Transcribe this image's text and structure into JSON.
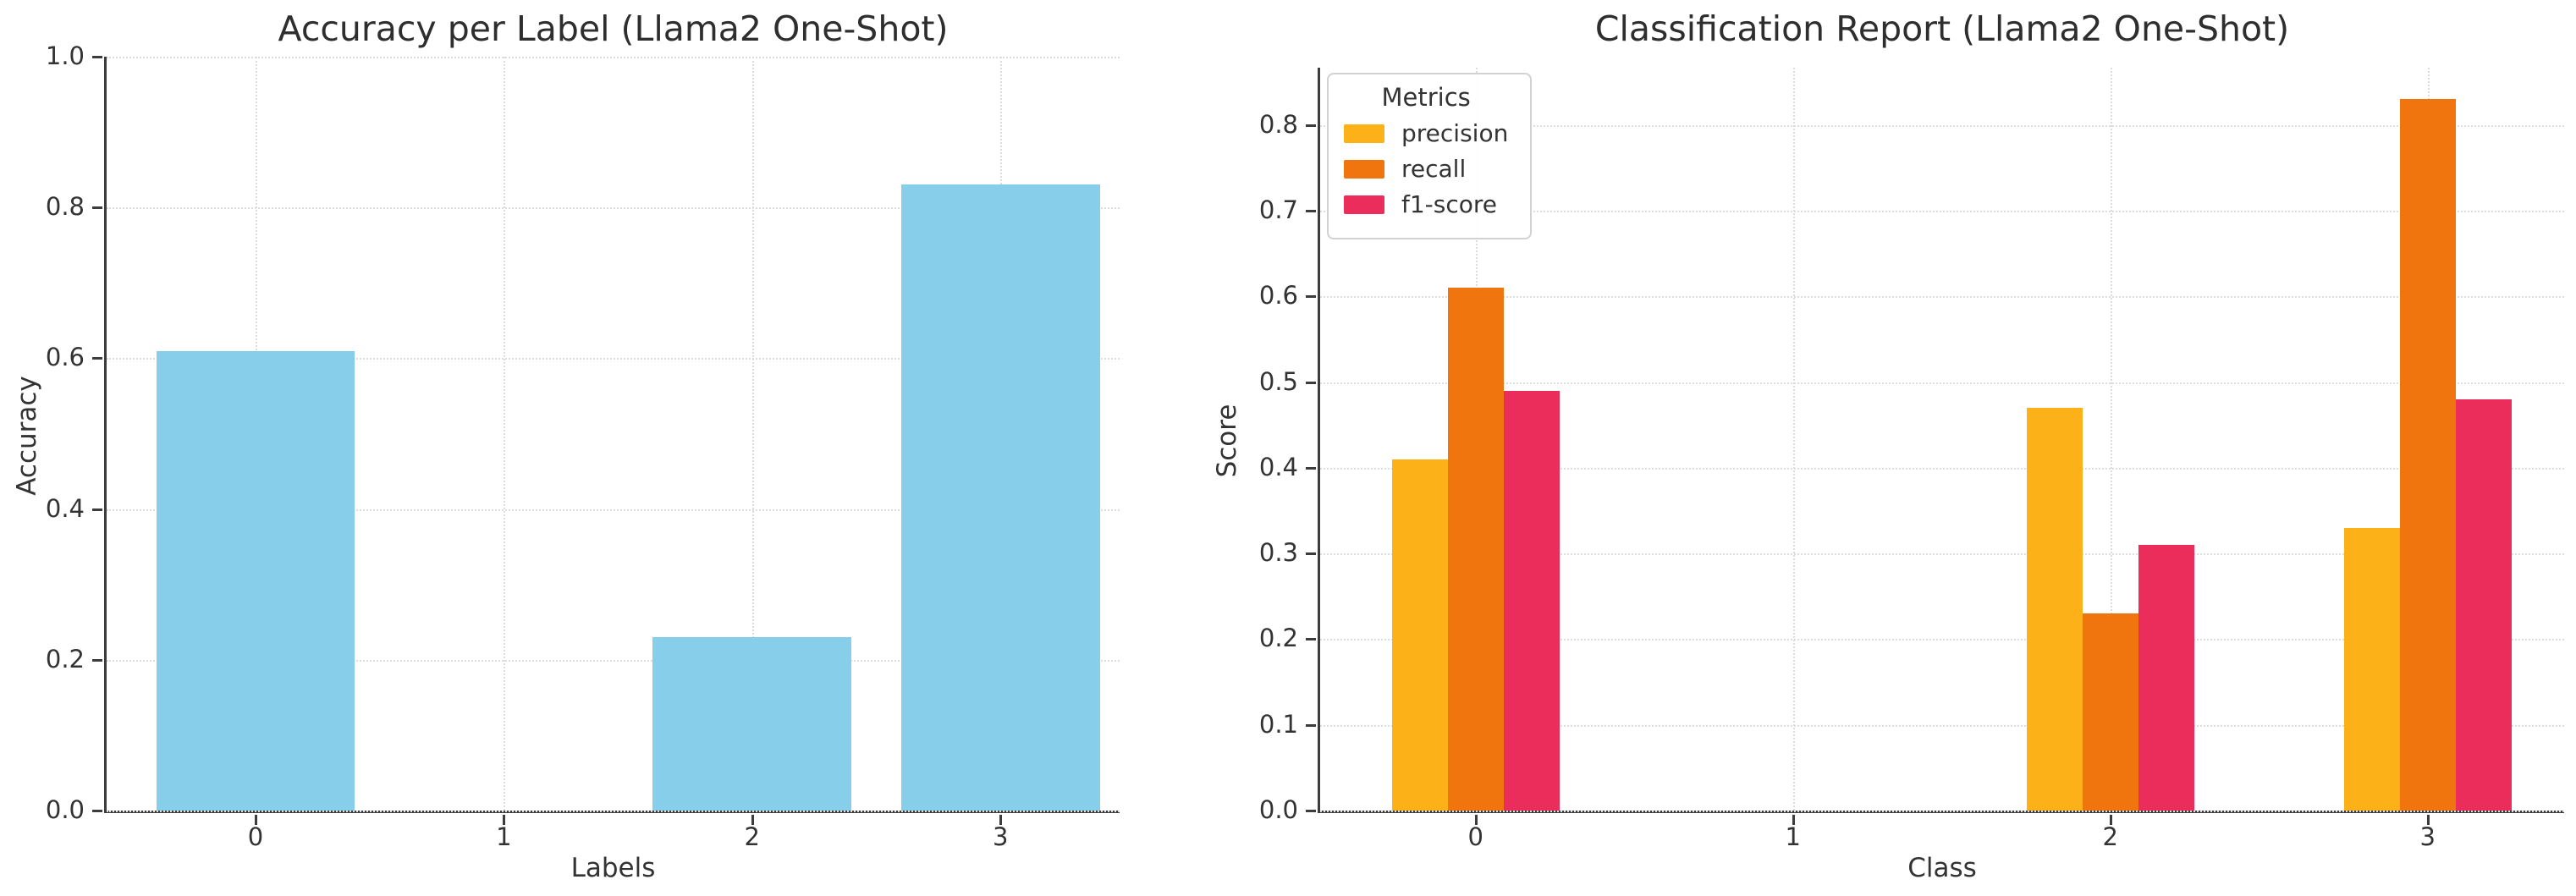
{
  "chart_data": [
    {
      "type": "bar",
      "title": "Accuracy per Label (Llama2 One-Shot)",
      "xlabel": "Labels",
      "ylabel": "Accuracy",
      "categories": [
        "0",
        "1",
        "2",
        "3"
      ],
      "values": [
        0.61,
        0.0,
        0.23,
        0.83
      ],
      "bar_color": "#87CEEB",
      "yticks": [
        0.0,
        0.2,
        0.4,
        0.6,
        0.8,
        1.0
      ],
      "ylim": [
        0.0,
        1.0
      ],
      "grid": true,
      "legend": null
    },
    {
      "type": "bar",
      "title": "Classification Report (Llama2 One-Shot)",
      "xlabel": "Class",
      "ylabel": "Score",
      "categories": [
        "0",
        "1",
        "2",
        "3"
      ],
      "series": [
        {
          "name": "precision",
          "color": "#FBB117",
          "values": [
            0.41,
            0.0,
            0.47,
            0.33
          ]
        },
        {
          "name": "recall",
          "color": "#F0750F",
          "values": [
            0.61,
            0.0,
            0.23,
            0.83
          ]
        },
        {
          "name": "f1-score",
          "color": "#EB2D5B",
          "values": [
            0.49,
            0.0,
            0.31,
            0.48
          ]
        }
      ],
      "yticks": [
        0.0,
        0.1,
        0.2,
        0.3,
        0.4,
        0.5,
        0.6,
        0.7,
        0.8
      ],
      "ylim": [
        0.0,
        0.867
      ],
      "grid": true,
      "legend": {
        "title": "Metrics",
        "position": "upper-left"
      }
    }
  ]
}
